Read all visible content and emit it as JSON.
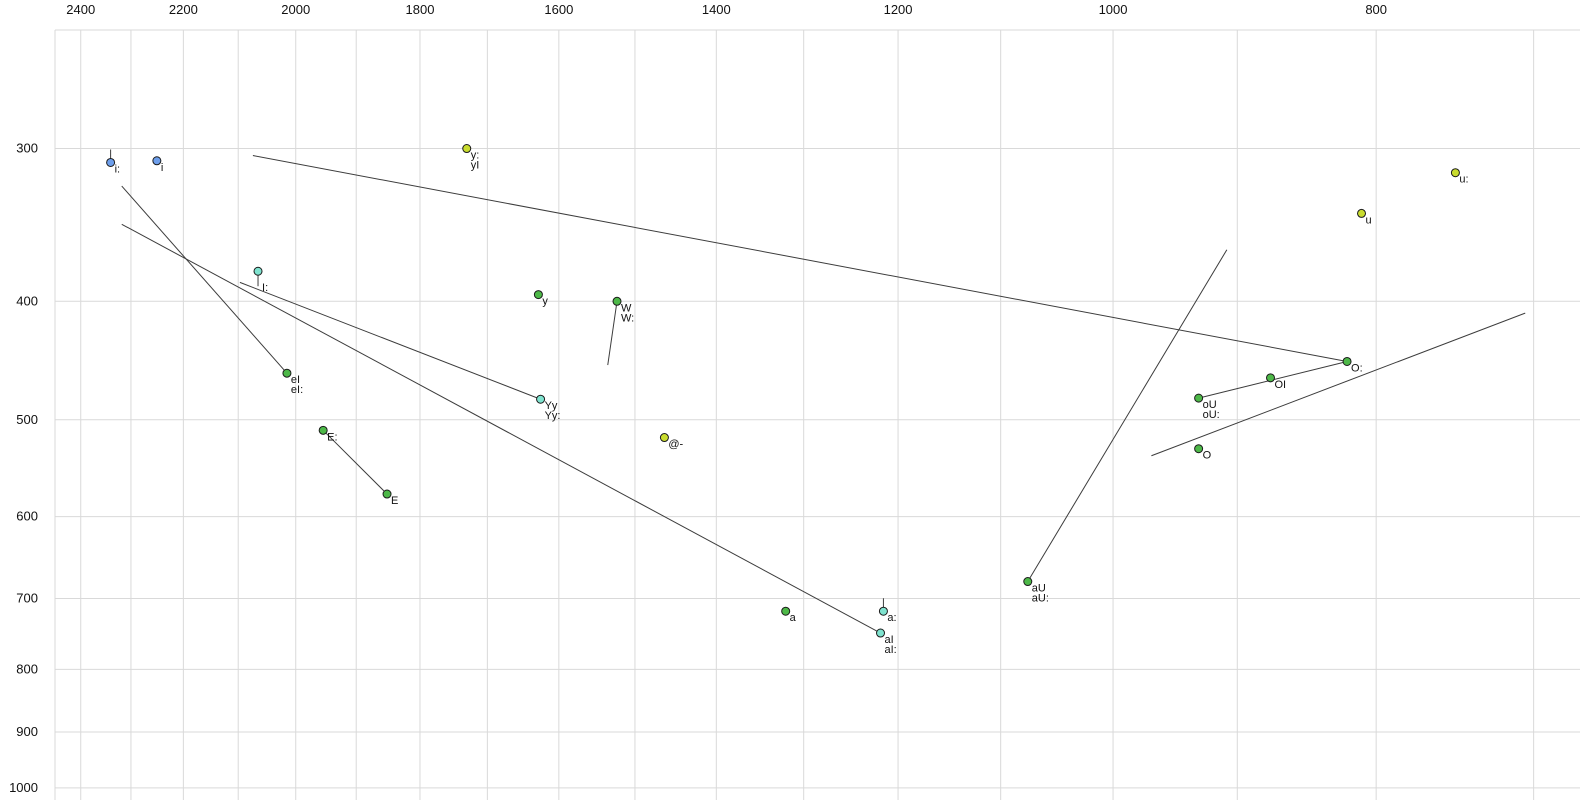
{
  "chart_data": {
    "type": "scatter",
    "x_axis": {
      "scale": "log",
      "reversed": true,
      "min": 673,
      "max": 2453,
      "ticks": [
        2400,
        2200,
        2000,
        1800,
        1600,
        1400,
        1200,
        1000,
        800
      ],
      "gridlines": [
        2400,
        2300,
        2200,
        2100,
        2000,
        1900,
        1800,
        1700,
        1600,
        1500,
        1400,
        1300,
        1200,
        1100,
        1000,
        900,
        800,
        700
      ]
    },
    "y_axis": {
      "scale": "log",
      "min": 240,
      "max": 1023,
      "ticks": [
        300,
        400,
        500,
        600,
        700,
        800,
        900,
        1000
      ],
      "gridlines": [
        300,
        400,
        500,
        600,
        700,
        800,
        900,
        1000
      ]
    },
    "points": [
      {
        "id": "i-long",
        "labels": [
          "i:"
        ],
        "f2": 2340,
        "f1": 308,
        "color": "blue",
        "tick": "above"
      },
      {
        "id": "i",
        "labels": [
          "i"
        ],
        "f2": 2250,
        "f1": 307,
        "color": "blue"
      },
      {
        "id": "y-long",
        "labels": [
          "y:",
          "yI"
        ],
        "f2": 1730,
        "f1": 300,
        "color": "yellowgreen"
      },
      {
        "id": "u-long",
        "labels": [
          "u:"
        ],
        "f2": 748,
        "f1": 314,
        "color": "yellowgreen"
      },
      {
        "id": "u",
        "labels": [
          "u"
        ],
        "f2": 810,
        "f1": 339,
        "color": "yellowgreen"
      },
      {
        "id": "I-long",
        "labels": [
          "I:"
        ],
        "f2": 2065,
        "f1": 378,
        "color": "cyan",
        "tick": "below"
      },
      {
        "id": "y",
        "labels": [
          "y"
        ],
        "f2": 1628,
        "f1": 395,
        "color": "green"
      },
      {
        "id": "W",
        "labels": [
          "W",
          "W:"
        ],
        "f2": 1523,
        "f1": 400,
        "color": "green"
      },
      {
        "id": "eI",
        "labels": [
          "eI",
          "eI:"
        ],
        "f2": 2015,
        "f1": 458,
        "color": "green"
      },
      {
        "id": "Yy",
        "labels": [
          "Yy",
          "Yy:"
        ],
        "f2": 1625,
        "f1": 481,
        "color": "cyan"
      },
      {
        "id": "E-long",
        "labels": [
          "E:"
        ],
        "f2": 1954,
        "f1": 510,
        "color": "green"
      },
      {
        "id": "schwa",
        "labels": [
          "@-"
        ],
        "f2": 1463,
        "f1": 517,
        "color": "yellowgreen"
      },
      {
        "id": "E",
        "labels": [
          "E"
        ],
        "f2": 1851,
        "f1": 575,
        "color": "green"
      },
      {
        "id": "O-long",
        "labels": [
          "O:"
        ],
        "f2": 820,
        "f1": 448,
        "color": "green"
      },
      {
        "id": "OI",
        "labels": [
          "OI"
        ],
        "f2": 875,
        "f1": 462,
        "color": "green"
      },
      {
        "id": "oU",
        "labels": [
          "oU",
          "oU:"
        ],
        "f2": 930,
        "f1": 480,
        "color": "green"
      },
      {
        "id": "O",
        "labels": [
          "O"
        ],
        "f2": 930,
        "f1": 528,
        "color": "green"
      },
      {
        "id": "aU",
        "labels": [
          "aU",
          "aU:"
        ],
        "f2": 1075,
        "f1": 678,
        "color": "green"
      },
      {
        "id": "a",
        "labels": [
          "a"
        ],
        "f2": 1320,
        "f1": 717,
        "color": "green"
      },
      {
        "id": "a-long",
        "labels": [
          "a:"
        ],
        "f2": 1215,
        "f1": 717,
        "color": "cyan",
        "tick": "above"
      },
      {
        "id": "aI",
        "labels": [
          "aI",
          "aI:"
        ],
        "f2": 1218,
        "f1": 747,
        "color": "cyan"
      }
    ],
    "lines": [
      {
        "name": "ei-glide",
        "from": [
          2318,
          322
        ],
        "to": [
          2015,
          458
        ]
      },
      {
        "name": "ai-glide",
        "from": [
          2318,
          346
        ],
        "to": [
          1218,
          747
        ]
      },
      {
        "name": "yy-glide",
        "from": [
          2097,
          386
        ],
        "to": [
          1625,
          481
        ]
      },
      {
        "name": "oi-glide",
        "from": [
          2074,
          304
        ],
        "to": [
          820,
          448
        ]
      },
      {
        "name": "ou-to-o",
        "from": [
          930,
          480
        ],
        "to": [
          820,
          448
        ]
      },
      {
        "name": "ou-glide",
        "from": [
          968,
          535
        ],
        "to": [
          705,
          409
        ]
      },
      {
        "name": "au-glide",
        "from": [
          1075,
          678
        ],
        "to": [
          908,
          363
        ]
      },
      {
        "name": "w-glide",
        "from": [
          1523,
          400
        ],
        "to": [
          1535,
          451
        ]
      },
      {
        "name": "e-pair",
        "from": [
          1954,
          510
        ],
        "to": [
          1851,
          575
        ]
      }
    ],
    "colors": {
      "blue": "#6d9eeb",
      "cyan": "#7fe3cf",
      "yellowgreen": "#c9dc2e",
      "green": "#4db848",
      "line": "#3c3c3c",
      "grid": "#d9d9d9",
      "point_stroke": "#1a1a1a",
      "axis_text": "#111111"
    }
  }
}
